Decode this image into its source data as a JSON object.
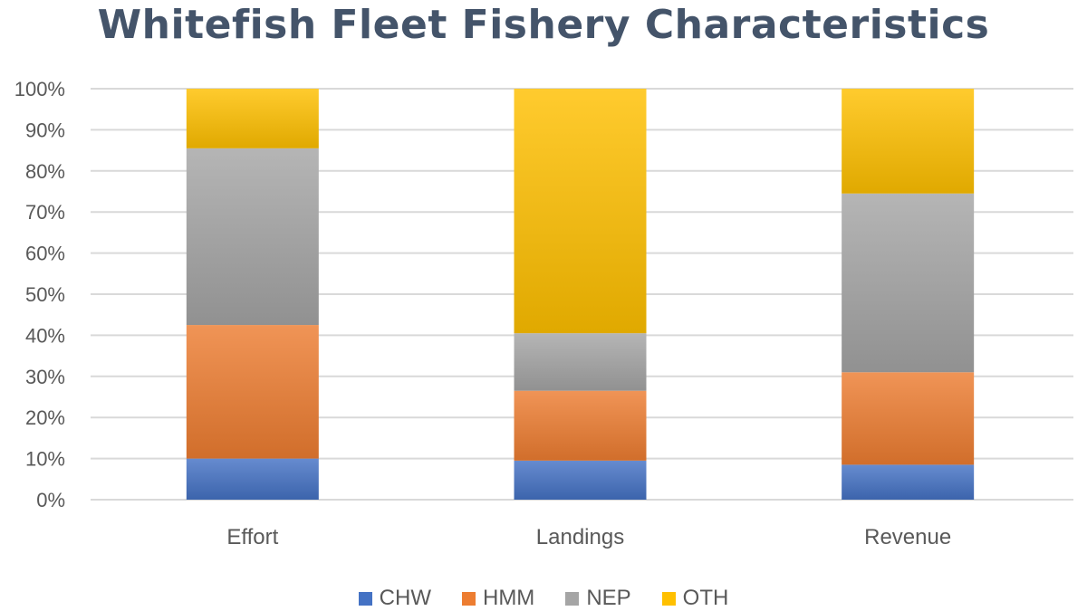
{
  "chart_data": {
    "type": "bar",
    "stacked": true,
    "title": "Whitefish Fleet Fishery Characteristics",
    "categories": [
      "Effort",
      "Landings",
      "Revenue"
    ],
    "series": [
      {
        "name": "CHW",
        "color": "#4472c4",
        "values": [
          10,
          9.5,
          8.5
        ]
      },
      {
        "name": "HMM",
        "color": "#ed7d31",
        "values": [
          32.5,
          17,
          22.5
        ]
      },
      {
        "name": "NEP",
        "color": "#a5a5a5",
        "values": [
          43,
          14,
          43.5
        ]
      },
      {
        "name": "OTH",
        "color": "#ffc000",
        "values": [
          14.5,
          59.5,
          25.5
        ]
      }
    ],
    "ylim": [
      0,
      100
    ],
    "yticks": [
      "0%",
      "10%",
      "20%",
      "30%",
      "40%",
      "50%",
      "60%",
      "70%",
      "80%",
      "90%",
      "100%"
    ],
    "grid": true,
    "legend_position": "bottom"
  }
}
